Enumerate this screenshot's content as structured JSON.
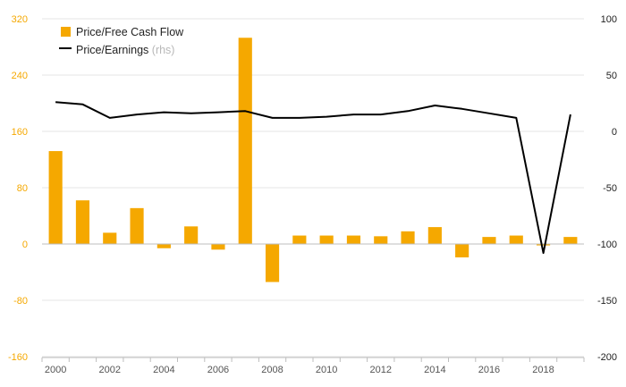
{
  "chart_data": {
    "type": "bar",
    "categories": [
      "2000",
      "2001",
      "2002",
      "2003",
      "2004",
      "2005",
      "2006",
      "2007",
      "2008",
      "2009",
      "2010",
      "2011",
      "2012",
      "2013",
      "2014",
      "2015",
      "2016",
      "2017",
      "2018",
      "2019"
    ],
    "x_tick_labels": [
      "2000",
      "2002",
      "2004",
      "2006",
      "2008",
      "2010",
      "2012",
      "2014",
      "2016",
      "2018"
    ],
    "series": [
      {
        "name": "Price/Free Cash Flow",
        "type": "bar",
        "axis": "left",
        "color": "#f5a800",
        "values": [
          132,
          62,
          16,
          51,
          -6,
          25,
          -8,
          293,
          -54,
          12,
          12,
          12,
          11,
          18,
          24,
          -19,
          10,
          12,
          -2,
          10
        ]
      },
      {
        "name": "Price/Earnings",
        "type": "line",
        "axis": "right",
        "color": "#000000",
        "values": [
          26,
          24,
          12,
          15,
          17,
          16,
          17,
          18,
          12,
          12,
          13,
          15,
          15,
          18,
          23,
          20,
          16,
          12,
          -108,
          15
        ]
      }
    ],
    "legend": [
      {
        "label": "Price/Free Cash Flow",
        "suffix": ""
      },
      {
        "label": "Price/Earnings",
        "suffix": "(rhs)"
      }
    ],
    "left_axis": {
      "min": -160,
      "max": 320,
      "ticks": [
        "320",
        "240",
        "160",
        "80",
        "0",
        "-80",
        "-160"
      ],
      "color": "#f5a800"
    },
    "right_axis": {
      "min": -200,
      "max": 100,
      "ticks": [
        "100",
        "50",
        "0",
        "-50",
        "-100",
        "-150",
        "-200"
      ],
      "color": "#222222"
    },
    "grid": true,
    "legend_position": "top-left"
  }
}
